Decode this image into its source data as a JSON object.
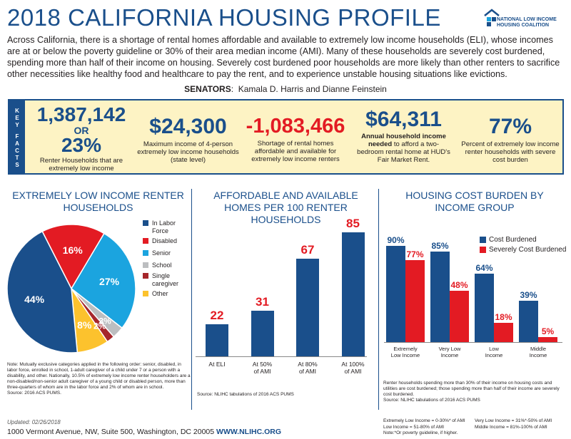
{
  "title": "2018 CALIFORNIA HOUSING PROFILE",
  "logo": {
    "line1": "NATIONAL LOW INCOME",
    "line2": "HOUSING COALITION",
    "brand_color": "#1a4f8b"
  },
  "intro": "Across California, there is a shortage of rental homes affordable and available to extremely low income households (ELI), whose incomes are at or below the poverty guideline or 30% of their area median income (AMI). Many of these households are severely cost burdened, spending more than half of their income on housing. Severely cost burdened poor households are more likely than other renters to sacrifice other necessities like healthy food and healthcare to pay the rent, and to experience unstable housing situations like evictions.",
  "senators": {
    "label": "SENATORS",
    "names": "Kamala D. Harris and Dianne Feinstein"
  },
  "key_facts": {
    "tab_label": "KEY FACTS",
    "facts": [
      {
        "value": "1,387,142",
        "connector": "OR",
        "value2": "23%",
        "caption": "Renter Households that are extremely low income"
      },
      {
        "value": "$24,300",
        "caption": "Maximum income of 4-person extremely low income households (state level)"
      },
      {
        "value": "-1,083,466",
        "caption": "Shortage of rental homes affordable and available for extremely low income renters"
      },
      {
        "value": "$64,311",
        "caption_bold": "Annual household income needed",
        "caption": "to afford a two-bedroom rental home at HUD's Fair Market Rent."
      },
      {
        "value": "77%",
        "caption": "Percent of extremely low income renter households with severe cost burden"
      }
    ]
  },
  "colors": {
    "navy": "#1a4f8b",
    "red": "#e31b23",
    "cyan": "#1ba4df",
    "gray": "#bcbec0",
    "maroon": "#a6262b",
    "yellow": "#fcc22d",
    "band": "#fdf3c4"
  },
  "pie_section": {
    "title": "EXTREMELY LOW INCOME RENTER HOUSEHOLDS",
    "note": "Note: Mutually exclusive categories applied in the following order: senior, disabled, in labor force, enrolled in school, 1-adult caregiver of a child under 7 or a person with a disability, and other. Nationally, 10.5% of extremely low income renter householders are a non-disabled/non-senior adult caregiver of a young child or disabled person, more than three-quarters of whom are in the labor force and 2% of whom are in school.",
    "source": "Source: 2016 ACS PUMS."
  },
  "bar_section": {
    "title": "AFFORDABLE AND AVAILABLE HOMES PER 100 RENTER HOUSEHOLDS",
    "source": "Source: NLIHC tabulations of 2016 ACS PUMS"
  },
  "burden_section": {
    "title": "HOUSING COST BURDEN BY INCOME GROUP",
    "note": "Renter households spending more than 30% of their income on housing costs and utilities are cost burdened; those spending more than half of their income are severely cost burdened.",
    "source": "Source: NLIHC tabulations of 2016 ACS PUMS"
  },
  "chart_data": [
    {
      "type": "pie",
      "categories": [
        "In Labor Force",
        "Disabled",
        "Senior",
        "School",
        "Single caregiver",
        "Other"
      ],
      "values": [
        44,
        16,
        27,
        3,
        2,
        8
      ],
      "value_labels": [
        "44%",
        "16%",
        "27%",
        "3%",
        "2%",
        "8%"
      ],
      "colors": [
        "#1a4f8b",
        "#e31b23",
        "#1ba4df",
        "#bcbec0",
        "#a6262b",
        "#fcc22d"
      ],
      "legend": "right"
    },
    {
      "type": "bar",
      "categories": [
        "At ELI",
        "At 50% of AMI",
        "At 80% of AMI",
        "At 100% of AMI"
      ],
      "category_lines": [
        [
          "At ELI"
        ],
        [
          "At 50%",
          "of AMI"
        ],
        [
          "At 80%",
          "of AMI"
        ],
        [
          "At 100%",
          "of AMI"
        ]
      ],
      "values": [
        22,
        31,
        67,
        85
      ],
      "ylim": [
        0,
        100
      ]
    },
    {
      "type": "bar",
      "categories": [
        "Extremely Low Income",
        "Very Low Income",
        "Low Income",
        "Middle Income"
      ],
      "category_lines": [
        [
          "Extremely",
          "Low Income"
        ],
        [
          "Very Low",
          "Income"
        ],
        [
          "Low",
          "Income"
        ],
        [
          "Middle",
          "Income"
        ]
      ],
      "series": [
        {
          "name": "Cost Burdened",
          "values": [
            90,
            85,
            64,
            39
          ],
          "labels": [
            "90%",
            "85%",
            "64%",
            "39%"
          ]
        },
        {
          "name": "Severely Cost Burdened",
          "values": [
            77,
            48,
            18,
            5
          ],
          "labels": [
            "77%",
            "48%",
            "18%",
            "5%"
          ]
        }
      ],
      "ylim": [
        0,
        100
      ],
      "legend": "top-right"
    }
  ],
  "footer": {
    "updated": "Updated: 02/26/2018",
    "address": "1000 Vermont Avenue, NW, Suite 500, Washington, DC 20005",
    "url": "WWW.NLIHC.ORG",
    "definitions_left": [
      "Extremely Low Income = 0-30%* of AMI",
      "Low Income = 51-80% of AMI",
      "Note:*Or poverty guideline, if higher."
    ],
    "definitions_right": [
      "Very Low Income = 31%*-50% of AMI",
      "Middle Income = 81%-100% of AMI"
    ]
  }
}
